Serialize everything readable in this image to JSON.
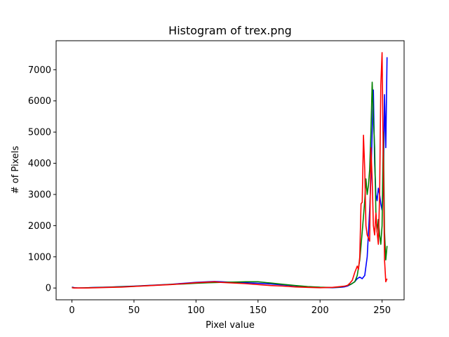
{
  "chart_data": {
    "type": "line",
    "title": "Histogram of trex.png",
    "xlabel": "Pixel value",
    "ylabel": "# of Pixels",
    "xlim": [
      -12.75,
      267.75
    ],
    "ylim": [
      -378,
      7930
    ],
    "xticks": [
      0,
      50,
      100,
      150,
      200,
      250
    ],
    "yticks": [
      0,
      1000,
      2000,
      3000,
      4000,
      5000,
      6000,
      7000
    ],
    "grid": false,
    "legend": "none",
    "series": [
      {
        "color": "#0000ff",
        "x": [
          0,
          2,
          5,
          10,
          20,
          30,
          40,
          50,
          60,
          70,
          80,
          90,
          100,
          110,
          115,
          120,
          130,
          140,
          150,
          160,
          170,
          180,
          190,
          200,
          210,
          215,
          218,
          220,
          222,
          224,
          226,
          228,
          230,
          232,
          234,
          236,
          238,
          240,
          241,
          242,
          243,
          244,
          245,
          246,
          247,
          248,
          249,
          250,
          251,
          252,
          253,
          254
        ],
        "y": [
          30,
          10,
          0,
          5,
          20,
          30,
          45,
          60,
          80,
          100,
          120,
          150,
          180,
          200,
          210,
          200,
          180,
          170,
          150,
          130,
          100,
          70,
          40,
          20,
          10,
          20,
          30,
          40,
          60,
          100,
          150,
          200,
          300,
          350,
          300,
          400,
          1000,
          2500,
          3500,
          5000,
          6350,
          4000,
          3000,
          2800,
          3200,
          3000,
          2700,
          2500,
          3300,
          6200,
          4500,
          7400
        ]
      },
      {
        "color": "#008000",
        "x": [
          0,
          2,
          5,
          10,
          20,
          30,
          40,
          50,
          60,
          70,
          80,
          90,
          100,
          110,
          120,
          130,
          140,
          150,
          160,
          170,
          180,
          190,
          200,
          210,
          215,
          220,
          225,
          228,
          230,
          232,
          234,
          236,
          237,
          238,
          239,
          240,
          241,
          242,
          243,
          244,
          245,
          246,
          247,
          248,
          249,
          250,
          251,
          252,
          253,
          254
        ],
        "y": [
          20,
          0,
          0,
          5,
          15,
          25,
          40,
          55,
          75,
          95,
          115,
          130,
          150,
          170,
          180,
          190,
          200,
          200,
          160,
          120,
          80,
          45,
          25,
          15,
          30,
          60,
          120,
          200,
          400,
          900,
          1800,
          2800,
          3500,
          3000,
          3300,
          3800,
          5000,
          6600,
          5500,
          4500,
          2400,
          1800,
          2200,
          1700,
          1400,
          2000,
          5000,
          1800,
          900,
          1350
        ]
      },
      {
        "color": "#ff0000",
        "x": [
          0,
          2,
          5,
          10,
          20,
          30,
          40,
          50,
          60,
          70,
          80,
          90,
          100,
          110,
          115,
          120,
          130,
          140,
          150,
          160,
          170,
          180,
          190,
          200,
          210,
          215,
          220,
          222,
          224,
          226,
          228,
          230,
          231,
          232,
          233,
          234,
          235,
          236,
          237,
          238,
          239,
          240,
          241,
          242,
          243,
          244,
          245,
          246,
          247,
          248,
          249,
          250,
          251,
          252,
          253,
          254
        ],
        "y": [
          10,
          0,
          0,
          0,
          10,
          20,
          30,
          50,
          70,
          90,
          110,
          140,
          170,
          190,
          200,
          180,
          160,
          140,
          110,
          80,
          60,
          35,
          20,
          10,
          20,
          40,
          60,
          80,
          150,
          250,
          500,
          700,
          600,
          1000,
          2700,
          2750,
          4900,
          3800,
          2000,
          1700,
          1600,
          1500,
          4500,
          3500,
          2000,
          1700,
          2400,
          1800,
          1400,
          3000,
          6500,
          7550,
          4000,
          900,
          200,
          300
        ]
      }
    ]
  }
}
